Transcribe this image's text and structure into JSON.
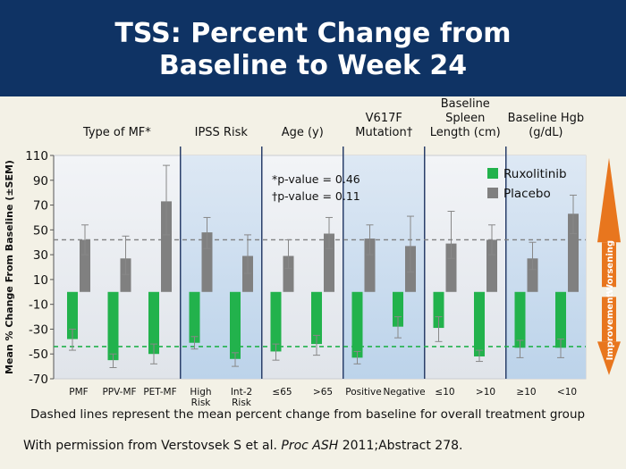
{
  "title": [
    "TSS: Percent Change from",
    "Baseline to Week 24"
  ],
  "colors": {
    "ruxolitinib": "#22b24c",
    "placebo": "#808080",
    "title_bg": "#0f3364",
    "worsening": "#e8761e",
    "improvement": "#e8761e"
  },
  "chart_data": {
    "type": "bar",
    "ylabel": "Mean % Change From Baseline (±SEM)",
    "ylim": [
      -70,
      110
    ],
    "yticks": [
      110,
      90,
      70,
      50,
      30,
      10,
      -10,
      -30,
      -50,
      -70
    ],
    "groups": [
      {
        "label": [
          "Type of MF*"
        ],
        "categories": [
          "PMF",
          "PPV-MF",
          "PET-MF"
        ],
        "shaded": false
      },
      {
        "label": [
          "IPSS Risk"
        ],
        "categories": [
          [
            "High",
            "Risk"
          ],
          [
            "Int-2",
            "Risk"
          ]
        ],
        "shaded": true
      },
      {
        "label": [
          "Age (y)"
        ],
        "categories": [
          "≤65",
          ">65"
        ],
        "shaded": false
      },
      {
        "label": [
          "V617F",
          "Mutation†"
        ],
        "categories": [
          "Positive",
          "Negative"
        ],
        "shaded": true
      },
      {
        "label": [
          "Baseline",
          "Spleen",
          "Length (cm)"
        ],
        "categories": [
          "≤10",
          ">10"
        ],
        "shaded": false
      },
      {
        "label": [
          "Baseline Hgb",
          "(g/dL)"
        ],
        "categories": [
          "≥10",
          "<10"
        ],
        "shaded": true
      }
    ],
    "series": [
      {
        "name": "Ruxolitinib",
        "values": [
          -38,
          -55,
          -50,
          -41,
          -54,
          -48,
          -42,
          -53,
          -28,
          -29,
          -52,
          -45,
          -45
        ],
        "err_lo": [
          -47,
          -61,
          -58,
          -46,
          -60,
          -55,
          -51,
          -58,
          -37,
          -40,
          -56,
          -53,
          -53
        ],
        "err_hi": [
          -30,
          -50,
          -42,
          -36,
          -49,
          -42,
          -35,
          -48,
          -20,
          -20,
          -47,
          -39,
          -38
        ]
      },
      {
        "name": "Placebo",
        "values": [
          42,
          27,
          73,
          48,
          29,
          29,
          47,
          43,
          37,
          39,
          42,
          27,
          63
        ],
        "err_lo": [
          30,
          14,
          46,
          35,
          15,
          19,
          35,
          30,
          16,
          27,
          30,
          18,
          47
        ],
        "err_hi": [
          54,
          45,
          102,
          60,
          46,
          42,
          60,
          54,
          61,
          65,
          54,
          40,
          78
        ]
      }
    ],
    "reference_lines": {
      "placebo_mean": 42,
      "ruxolitinib_mean": -44
    },
    "annotations": [
      "*p-value = 0.46",
      "†p-value = 0.11"
    ],
    "legend_position": "top-right",
    "side_labels": {
      "worsening": "Worsening",
      "improvement": "Improvement"
    }
  },
  "footnote": "Dashed lines represent the mean percent change from baseline for overall treatment group",
  "citation": {
    "prefix": "With permission from Verstovsek S et al. ",
    "journal": "Proc ASH",
    "suffix": " 2011;Abstract 278."
  }
}
